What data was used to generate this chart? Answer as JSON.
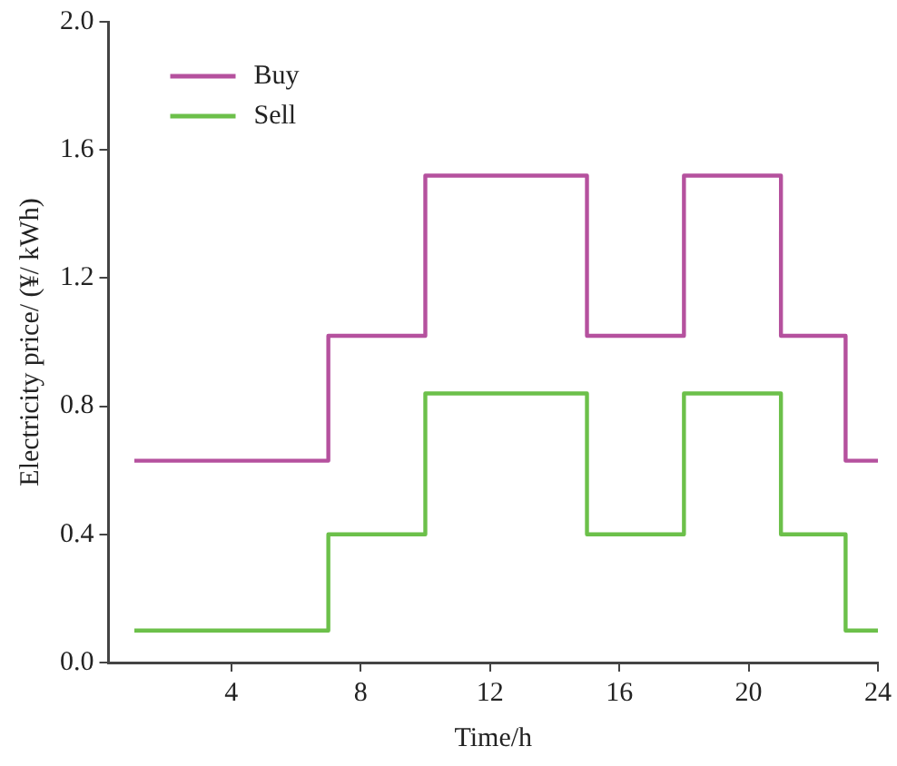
{
  "chart_data": {
    "type": "step",
    "xlabel": "Time/h",
    "ylabel": "Electricity price/ (¥/ kWh)",
    "x": [
      1,
      7,
      10,
      15,
      18,
      21,
      23,
      24
    ],
    "series": [
      {
        "name": "Buy",
        "color": "#b5519e",
        "values": [
          0.63,
          1.02,
          1.52,
          1.02,
          1.52,
          1.02,
          0.63,
          0.63
        ]
      },
      {
        "name": "Sell",
        "color": "#6cc04a",
        "values": [
          0.1,
          0.4,
          0.84,
          0.4,
          0.84,
          0.4,
          0.1,
          0.1
        ]
      }
    ],
    "xlim": [
      0.2,
      24
    ],
    "xticks": [
      4,
      8,
      12,
      16,
      20,
      24
    ],
    "ylim": [
      0,
      2
    ],
    "yticks": [
      {
        "value": 0,
        "label": "0.0"
      },
      0.4,
      0.8,
      1.2,
      1.6,
      {
        "value": 2,
        "label": "2.0"
      }
    ],
    "grid": false,
    "legend": "top left",
    "line_style": "solid",
    "marker": "none"
  }
}
